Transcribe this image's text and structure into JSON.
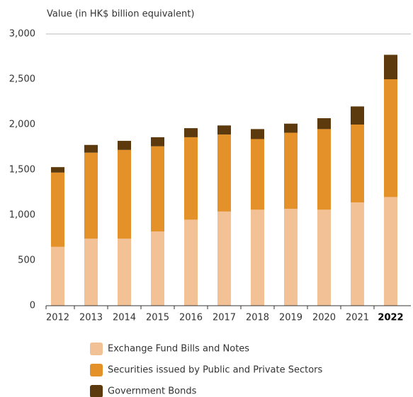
{
  "chart_data": {
    "type": "stacked_bar",
    "y_axis_label": "Value (in HK$ billion equivalent)",
    "categories": [
      "2012",
      "2013",
      "2014",
      "2015",
      "2016",
      "2017",
      "2018",
      "2019",
      "2020",
      "2021",
      "2022"
    ],
    "highlight_category": "2022",
    "series": [
      {
        "name": "Exchange Fund Bills and Notes",
        "color": "#f2c196",
        "values": [
          650,
          740,
          740,
          820,
          950,
          1040,
          1060,
          1070,
          1060,
          1140,
          1200
        ]
      },
      {
        "name": "Securities issued by Public and Private Sectors",
        "color": "#e39128",
        "values": [
          820,
          950,
          980,
          940,
          910,
          850,
          780,
          840,
          890,
          860,
          1300
        ]
      },
      {
        "name": "Government Bonds",
        "color": "#5c3a0d",
        "values": [
          60,
          85,
          100,
          100,
          100,
          100,
          110,
          100,
          120,
          200,
          270
        ]
      }
    ],
    "ylim": [
      0,
      3000
    ],
    "yticks": [
      0,
      500,
      {
        "value": 1000,
        "label": "1,000"
      },
      {
        "value": 1500,
        "label": "1,500"
      },
      {
        "value": 2000,
        "label": "2,000"
      },
      {
        "value": 2500,
        "label": "2,500"
      },
      {
        "value": 3000,
        "label": "3,000"
      }
    ],
    "grid": false
  }
}
